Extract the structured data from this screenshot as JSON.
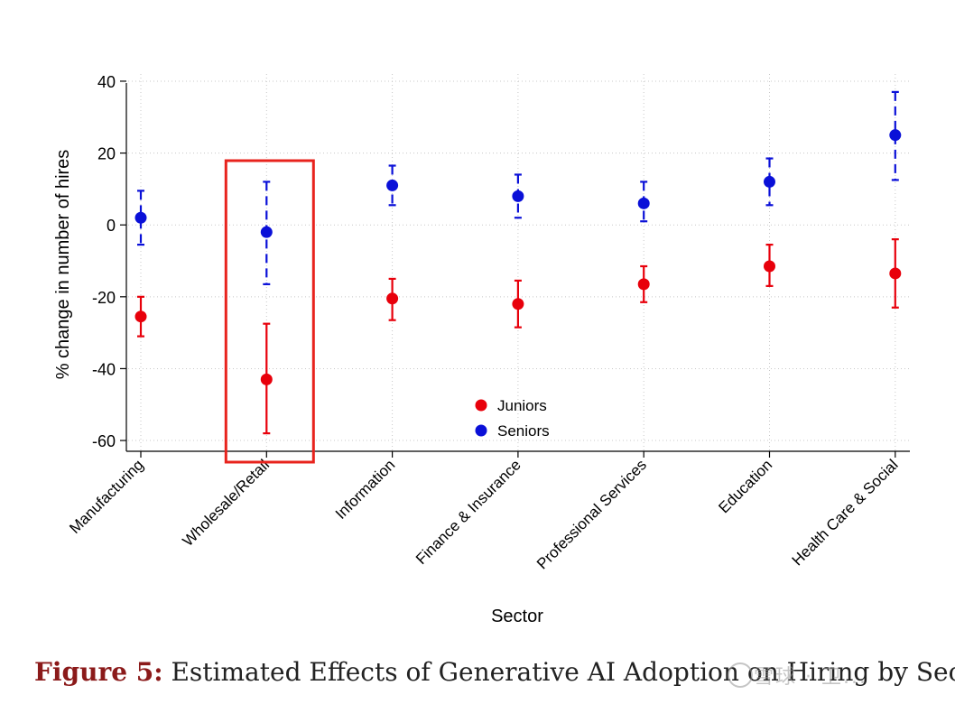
{
  "chart_data": {
    "type": "scatter",
    "title": "",
    "xlabel": "Sector",
    "ylabel": "% change in number of hires",
    "ylim": [
      -63,
      42
    ],
    "yticks": [
      40,
      20,
      0,
      -20,
      -40,
      -60
    ],
    "grid": true,
    "categories": [
      "Manufacturing",
      "Wholesale/Retail",
      "Information",
      "Finance & Insurance",
      "Professional Services",
      "Education",
      "Health Care & Social"
    ],
    "series": [
      {
        "name": "Juniors",
        "color": "#e8000b",
        "style": "solid",
        "values": [
          -25.5,
          -43,
          -20.5,
          -22,
          -16.5,
          -11.5,
          -13.5
        ],
        "ci_low": [
          -31,
          -58,
          -26.5,
          -28.5,
          -21.5,
          -17,
          -23
        ],
        "ci_high": [
          -20,
          -27.5,
          -15,
          -15.5,
          -11.5,
          -5.5,
          -4
        ]
      },
      {
        "name": "Seniors",
        "color": "#0a10d8",
        "style": "dashed",
        "values": [
          2,
          -2,
          11,
          8,
          6,
          12,
          25
        ],
        "ci_low": [
          -5.5,
          -16.5,
          5.5,
          2,
          1,
          5.5,
          12.5
        ],
        "ci_high": [
          9.5,
          12,
          16.5,
          14,
          12,
          18.5,
          37
        ]
      }
    ],
    "legend": [
      "Juniors",
      "Seniors"
    ],
    "legend_position": "bottom-center",
    "highlight": {
      "category": "Wholesale/Retail",
      "color": "#e8231d"
    }
  },
  "caption": {
    "label": "Figure 5:",
    "text": " Estimated Effects of Generative AI Adoption on Hiring by Sector"
  },
  "watermark": "雪球 · 卫..."
}
